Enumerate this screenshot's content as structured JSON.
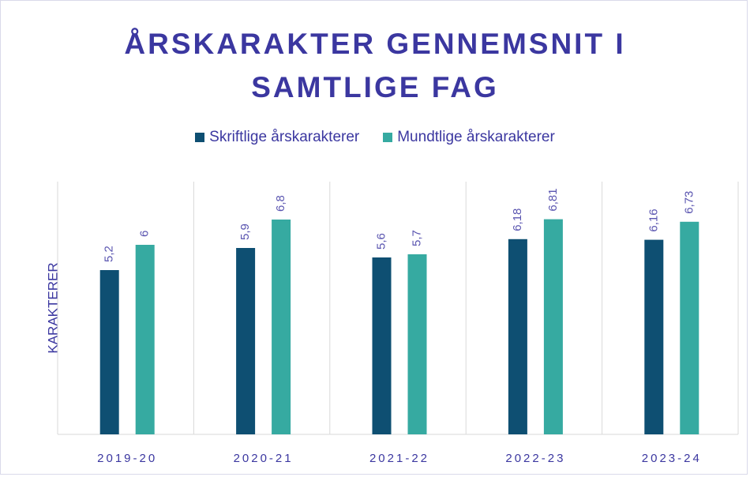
{
  "chart_data": {
    "type": "bar",
    "title": "ÅRSKARAKTER GENNEMSNIT I SAMTLIGE FAG",
    "y_label": "KARAKTERER",
    "categories": [
      "2019-20",
      "2020-21",
      "2021-22",
      "2022-23",
      "2023-24"
    ],
    "series": [
      {
        "name": "Skriftlige årskarakterer",
        "color": "#0e4f72",
        "values": [
          5.2,
          5.9,
          5.6,
          6.18,
          6.16
        ],
        "value_labels": [
          "5,2",
          "5,9",
          "5,6",
          "6,18",
          "6,16"
        ]
      },
      {
        "name": "Mundtlige årskarakterer",
        "color": "#36aaa1",
        "values": [
          6,
          6.8,
          5.7,
          6.81,
          6.73
        ],
        "value_labels": [
          "6",
          "6,8",
          "5,7",
          "6,81",
          "6,73"
        ]
      }
    ],
    "ylim": [
      0,
      8
    ]
  }
}
